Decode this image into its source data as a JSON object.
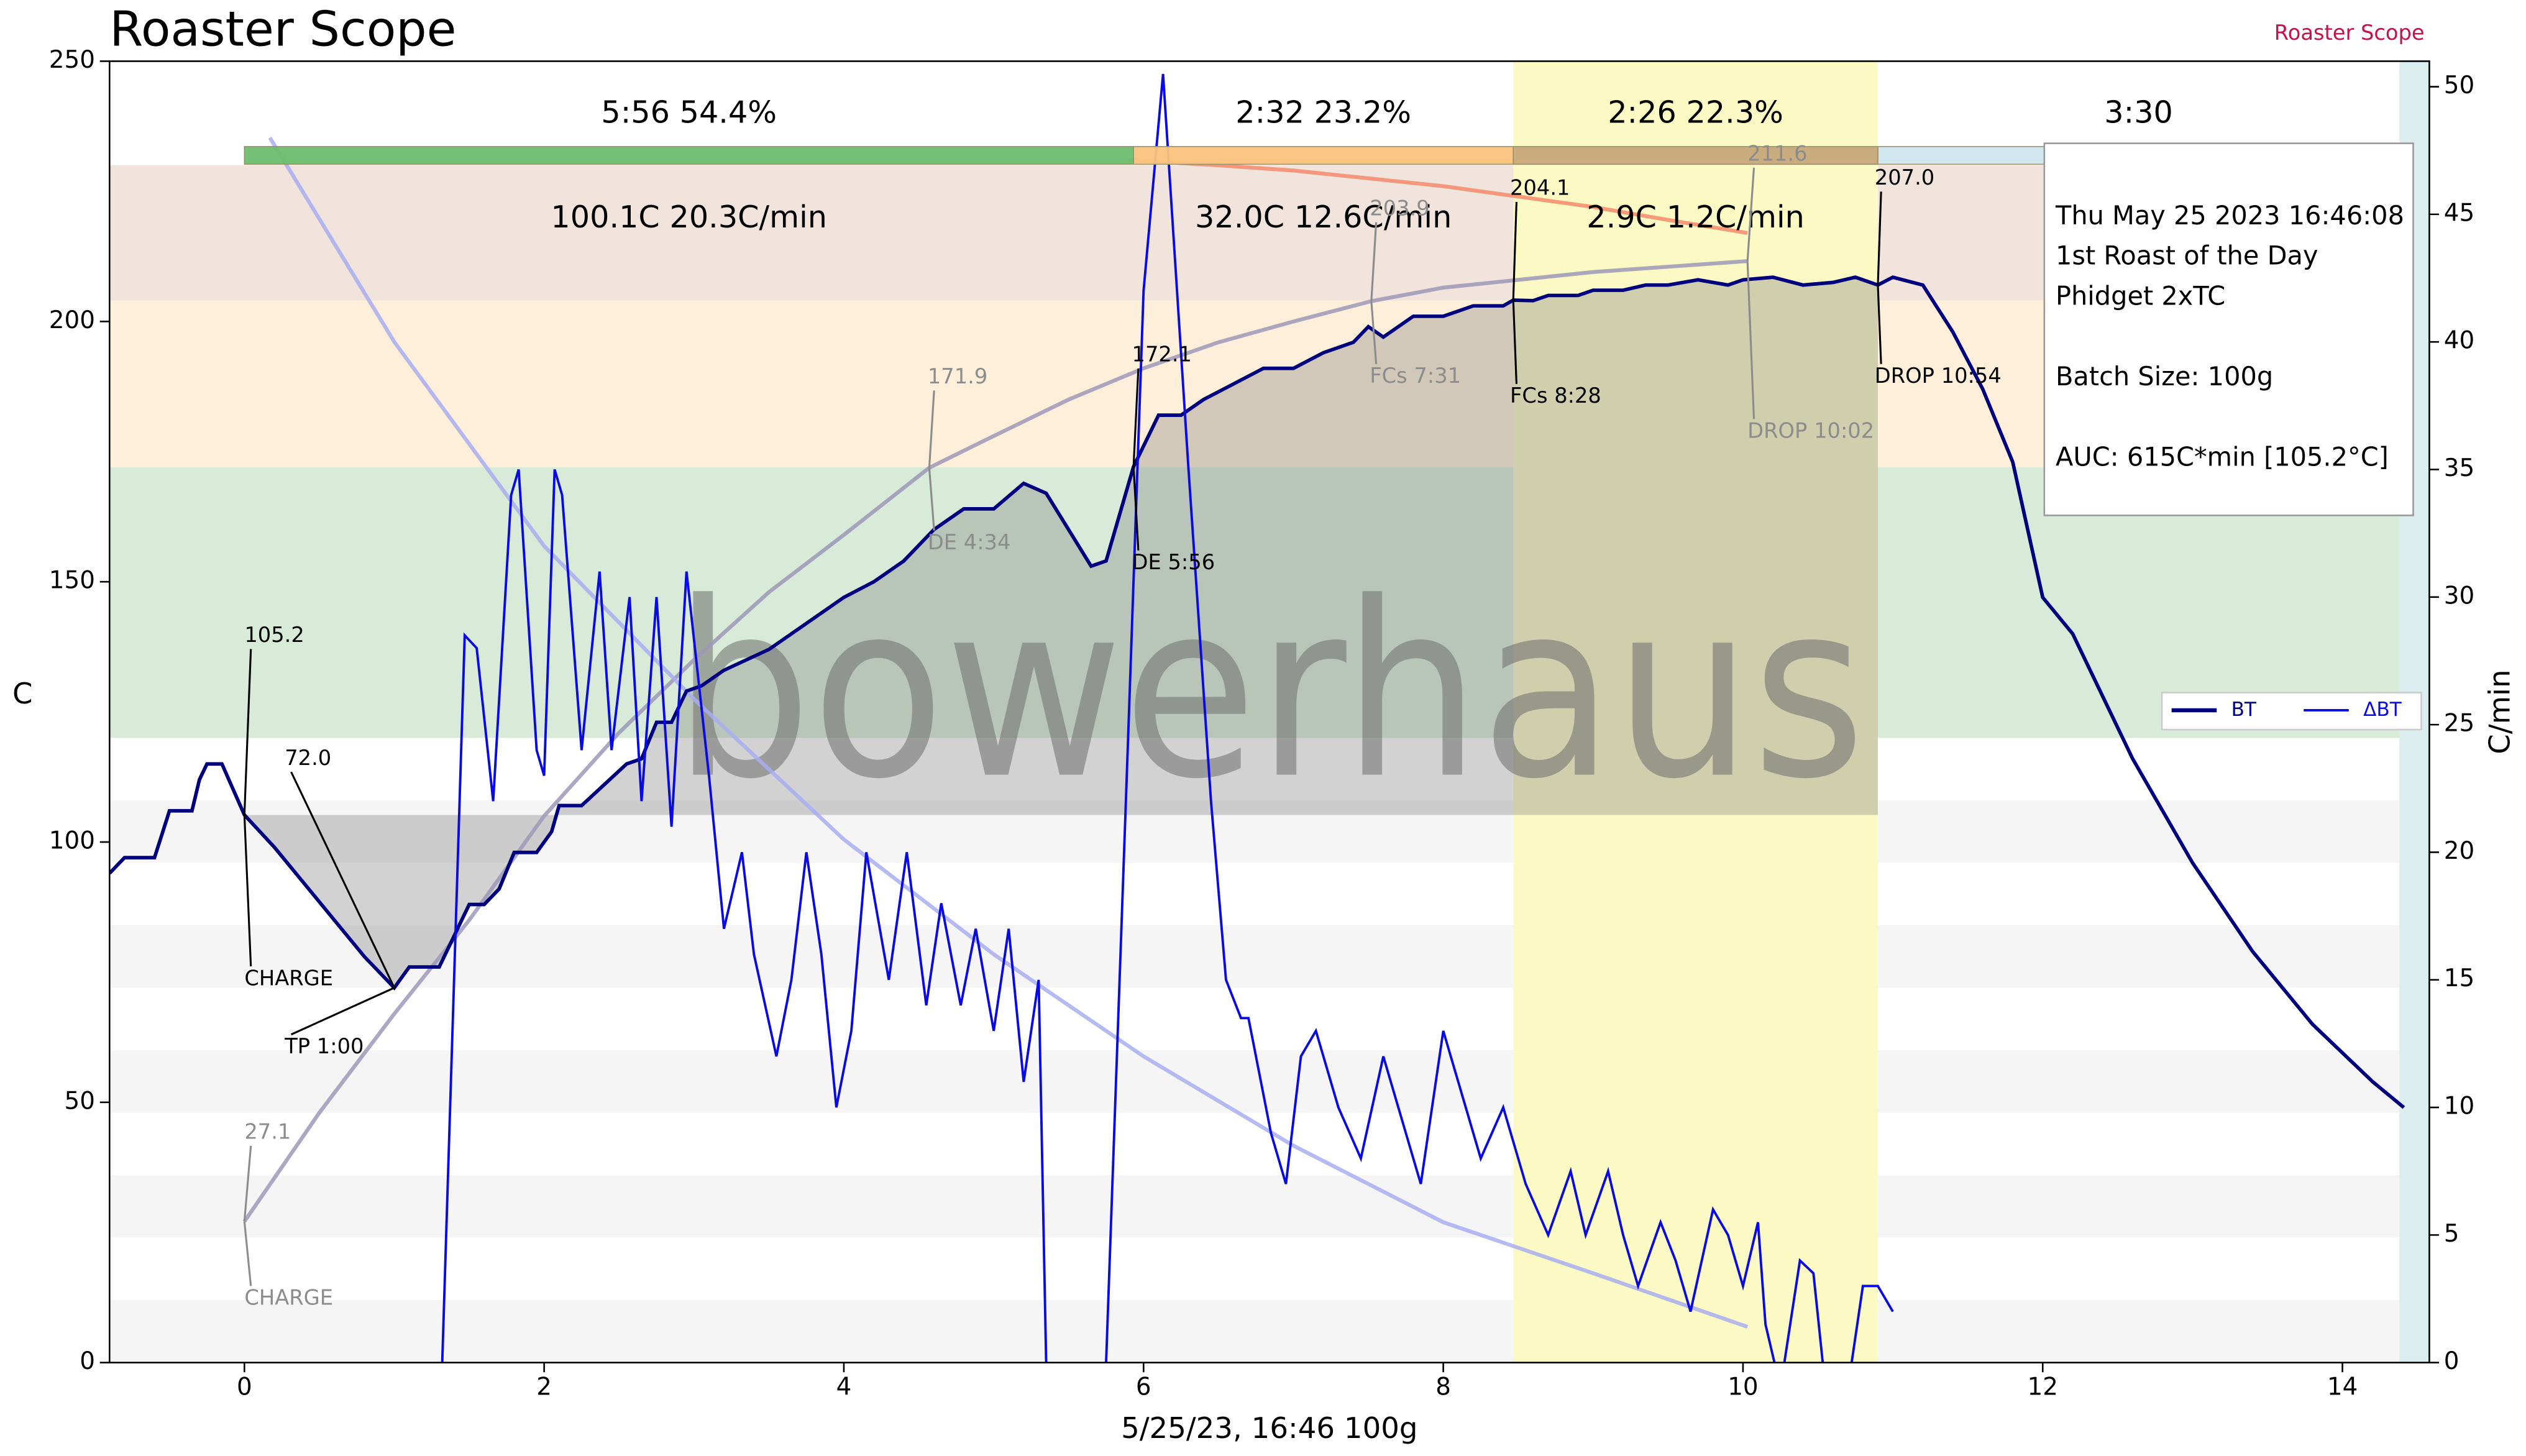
{
  "header": {
    "title": "Roaster Scope",
    "brand": "Roaster Scope"
  },
  "chart_data": {
    "type": "line",
    "xlabel": "5/25/23, 16:46   100g",
    "ylabel": "C",
    "y2label": "C/min",
    "xlim": [
      -0.9,
      14.58
    ],
    "xticks": [
      0,
      2,
      4,
      6,
      8,
      10,
      12,
      14
    ],
    "ylim": [
      0,
      250
    ],
    "yticks": [
      0,
      50,
      100,
      150,
      200,
      250
    ],
    "y2lim": [
      0,
      51
    ],
    "y2ticks": [
      0,
      5,
      10,
      15,
      20,
      25,
      30,
      35,
      40,
      45,
      50
    ],
    "legend": "right",
    "series": [
      {
        "name": "BT",
        "color": "#00007f",
        "x": [
          -0.9,
          -0.8,
          -0.6,
          -0.5,
          -0.35,
          -0.3,
          -0.25,
          -0.15,
          0,
          0.2,
          0.4,
          0.6,
          0.8,
          1.0,
          1.1,
          1.3,
          1.4,
          1.5,
          1.6,
          1.7,
          1.8,
          1.95,
          2.05,
          2.1,
          2.25,
          2.4,
          2.55,
          2.65,
          2.75,
          2.85,
          2.95,
          3.05,
          3.2,
          3.35,
          3.5,
          3.65,
          3.8,
          4.0,
          4.2,
          4.4,
          4.6,
          4.7,
          4.8,
          5.0,
          5.2,
          5.35,
          5.5,
          5.65,
          5.75,
          5.933,
          6.1,
          6.25,
          6.4,
          6.6,
          6.8,
          7.0,
          7.2,
          7.4,
          7.5,
          7.6,
          7.8,
          8.0,
          8.2,
          8.4,
          8.467,
          8.6,
          8.7,
          8.9,
          9.0,
          9.2,
          9.35,
          9.5,
          9.7,
          9.9,
          10.0,
          10.2,
          10.4,
          10.6,
          10.75,
          10.9,
          11.0,
          11.2,
          11.4,
          11.6,
          11.8,
          12.0,
          12.2,
          12.6,
          13.0,
          13.4,
          13.8,
          14.2,
          14.41
        ],
        "values": [
          94,
          97,
          97,
          106,
          106,
          112,
          115,
          115,
          105.2,
          99,
          92,
          85,
          78,
          72.0,
          76,
          76,
          82,
          88,
          88,
          91,
          98,
          98,
          102,
          107,
          107,
          111,
          115,
          116,
          123,
          123,
          129,
          130,
          133,
          135,
          137,
          140,
          143,
          147,
          150,
          154,
          160,
          162,
          164,
          164,
          168.9,
          167,
          160,
          153,
          154,
          172.1,
          182,
          182,
          185,
          188,
          191,
          191,
          194,
          196,
          199,
          197,
          201,
          201,
          203,
          203,
          204.1,
          204,
          205,
          205,
          206,
          206,
          207,
          207,
          208,
          207,
          208,
          208.5,
          207,
          207.5,
          208.5,
          207.0,
          208.5,
          207,
          198,
          187,
          173,
          147,
          140,
          116,
          96,
          79,
          65,
          54,
          49
        ]
      },
      {
        "name": "ΔBT",
        "color": "#0a0ae6",
        "axis": "y2",
        "x": [
          1.32,
          1.47,
          1.55,
          1.66,
          1.78,
          1.83,
          1.95,
          2.0,
          2.07,
          2.12,
          2.25,
          2.37,
          2.45,
          2.57,
          2.65,
          2.75,
          2.85,
          2.95,
          3.1,
          3.2,
          3.32,
          3.4,
          3.55,
          3.65,
          3.75,
          3.85,
          3.95,
          4.05,
          4.15,
          4.3,
          4.42,
          4.55,
          4.65,
          4.78,
          4.88,
          5.0,
          5.1,
          5.2,
          5.3,
          5.35,
          5.45,
          5.7,
          5.75,
          5.9,
          6.0,
          6.13,
          6.3,
          6.45,
          6.55,
          6.65,
          6.7,
          6.85,
          6.95,
          7.05,
          7.15,
          7.3,
          7.45,
          7.6,
          7.75,
          7.85,
          8.0,
          8.1,
          8.25,
          8.4,
          8.55,
          8.7,
          8.85,
          8.95,
          9.1,
          9.2,
          9.3,
          9.45,
          9.55,
          9.65,
          9.8,
          9.9,
          10.0,
          10.1,
          10.15,
          10.25,
          10.38,
          10.47,
          10.55,
          10.7,
          10.8,
          10.9,
          11.0
        ],
        "values": [
          0,
          28.5,
          28,
          22,
          34,
          35,
          24,
          23,
          35,
          34,
          24,
          31,
          24,
          30,
          22,
          30,
          21,
          31,
          23,
          17,
          20,
          16,
          12,
          15,
          20,
          16,
          10,
          13,
          20,
          15,
          20,
          14,
          18,
          14,
          17,
          13,
          17,
          11,
          15,
          0,
          -5,
          -5,
          0,
          25,
          42,
          50.5,
          35,
          22,
          15,
          13.5,
          13.5,
          9,
          7,
          12,
          13,
          10,
          8,
          12,
          9,
          7,
          13,
          11,
          8,
          10,
          7,
          5,
          7.5,
          5,
          7.5,
          5,
          3,
          5.5,
          4,
          2,
          6,
          5,
          3,
          5.5,
          1.5,
          -1,
          4,
          3.5,
          -1,
          -1,
          3,
          3,
          2
        ]
      }
    ],
    "background": [
      {
        "color": "#9d98b8",
        "x": [
          0,
          0.5,
          1,
          1.5,
          2,
          2.5,
          3,
          3.5,
          4,
          4.57,
          5,
          5.5,
          6,
          6.5,
          7,
          7.52,
          8,
          9,
          10.03
        ],
        "values": [
          27.1,
          48,
          67,
          85,
          105,
          121,
          135,
          148,
          159,
          171.9,
          178,
          185,
          191,
          196,
          200,
          203.9,
          206.5,
          209.5,
          211.6
        ]
      },
      {
        "color": "#a8aef0",
        "axis": "y2",
        "x": [
          0.17,
          1,
          2,
          3,
          4,
          5,
          6,
          7,
          8,
          9,
          10.03
        ],
        "values": [
          48,
          40,
          32,
          26,
          20.5,
          16,
          12,
          8.5,
          5.5,
          3.5,
          1.4
        ]
      },
      {
        "color": "#f58a6c",
        "x": [
          5.9,
          6.5,
          7,
          7.5,
          8,
          8.5,
          9,
          9.5,
          10.03
        ],
        "values": [
          231,
          230,
          229,
          227.5,
          226,
          224,
          222,
          219.5,
          217
        ]
      }
    ],
    "events": [
      {
        "name": "CHARGE",
        "time": 0,
        "temp": 105.2
      },
      {
        "name": "TP 1:00",
        "time": 1.0,
        "temp": 72.0,
        "temp_label": "72.0"
      },
      {
        "name": "DE 5:56",
        "time": 5.933,
        "temp": 172.1
      },
      {
        "name": "FCs 8:28",
        "time": 8.467,
        "temp": 204.1
      },
      {
        "name": "DROP 10:54",
        "time": 10.9,
        "temp": 207.0,
        "temp_label": "207.0"
      }
    ],
    "background_events": [
      {
        "name": "CHARGE",
        "time": 0,
        "temp": 27.1
      },
      {
        "name": "DE 4:34",
        "time": 4.57,
        "temp": 171.9
      },
      {
        "name": "FCs 7:31",
        "time": 7.52,
        "temp": 203.9
      },
      {
        "name": "DROP 10:02",
        "time": 10.03,
        "temp": 211.6
      }
    ],
    "phases": [
      {
        "label": "5:56  54.4%",
        "stats": "100.1C  20.3C/min",
        "start": 0,
        "end": 5.933,
        "color": "#6dbd6d"
      },
      {
        "label": "2:32  23.2%",
        "stats": "32.0C  12.6C/min",
        "start": 5.933,
        "end": 8.467,
        "color": "#f9c47c"
      },
      {
        "label": "2:26  22.3%",
        "stats": "2.9C  1.2C/min",
        "start": 8.467,
        "end": 10.9,
        "color": "#c6a97a"
      },
      {
        "label": "3:30",
        "start": 10.9,
        "end": 14.38,
        "color": "#cfe6ef"
      }
    ],
    "bands": [
      {
        "lo": 120,
        "hi": 172,
        "color": "#d8ebd8"
      },
      {
        "lo": 172,
        "hi": 204,
        "color": "#fdefd9"
      },
      {
        "lo": 204,
        "hi": 230,
        "color": "#f0e4dc"
      }
    ],
    "stripes": [
      {
        "lo": 0,
        "hi": 12
      },
      {
        "lo": 24,
        "hi": 36
      },
      {
        "lo": 48,
        "hi": 60
      },
      {
        "lo": 72,
        "hi": 84
      },
      {
        "lo": 96,
        "hi": 108
      }
    ],
    "info": [
      "Thu May 25 2023 16:46:08",
      "1st Roast of the Day",
      "Phidget 2xTC",
      "Batch Size: 100g",
      "AUC: 615C*min [105.2°C]"
    ],
    "watermark": "bowerhaus"
  }
}
